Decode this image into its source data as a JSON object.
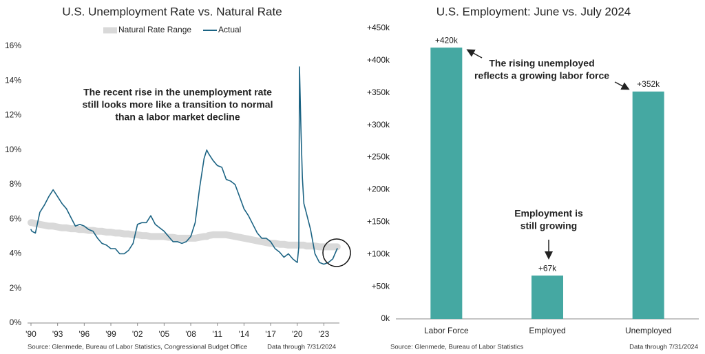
{
  "chart_data": [
    {
      "type": "line",
      "title": "U.S. Unemployment Rate vs. Natural Rate",
      "x": [
        1990.0,
        1990.1,
        1990.5,
        1991.0,
        1991.5,
        1992.0,
        1992.5,
        1993.0,
        1993.5,
        1994.0,
        1994.5,
        1995.0,
        1995.5,
        1996.0,
        1996.5,
        1997.0,
        1997.5,
        1998.0,
        1998.5,
        1999.0,
        1999.5,
        2000.0,
        2000.5,
        2001.0,
        2001.5,
        2002.0,
        2002.5,
        2003.0,
        2003.5,
        2004.0,
        2004.5,
        2005.0,
        2005.5,
        2006.0,
        2006.5,
        2007.0,
        2007.5,
        2008.0,
        2008.5,
        2009.0,
        2009.5,
        2009.8,
        2010.0,
        2010.5,
        2011.0,
        2011.5,
        2012.0,
        2012.5,
        2013.0,
        2013.5,
        2014.0,
        2014.5,
        2015.0,
        2015.5,
        2016.0,
        2016.5,
        2017.0,
        2017.5,
        2018.0,
        2018.5,
        2019.0,
        2019.5,
        2020.0,
        2020.17,
        2020.25,
        2020.42,
        2020.58,
        2020.75,
        2021.0,
        2021.5,
        2022.0,
        2022.5,
        2023.0,
        2023.5,
        2024.0,
        2024.5
      ],
      "series": [
        {
          "name": "Natural Rate Range",
          "color": "#d9d9d9",
          "values": [
            5.8,
            5.8,
            5.75,
            5.7,
            5.65,
            5.6,
            5.6,
            5.55,
            5.5,
            5.5,
            5.45,
            5.45,
            5.4,
            5.4,
            5.35,
            5.35,
            5.3,
            5.3,
            5.25,
            5.25,
            5.2,
            5.2,
            5.15,
            5.15,
            5.1,
            5.1,
            5.05,
            5.05,
            5.0,
            5.0,
            5.0,
            5.0,
            4.95,
            4.95,
            4.9,
            4.9,
            4.9,
            4.9,
            4.9,
            4.95,
            5.0,
            5.0,
            5.05,
            5.1,
            5.1,
            5.1,
            5.1,
            5.05,
            5.0,
            4.95,
            4.9,
            4.85,
            4.8,
            4.75,
            4.7,
            4.65,
            4.6,
            4.6,
            4.55,
            4.55,
            4.5,
            4.5,
            4.5,
            4.5,
            4.5,
            4.5,
            4.5,
            4.5,
            4.45,
            4.45,
            4.45,
            4.4,
            4.4,
            4.4,
            4.4,
            4.4
          ]
        },
        {
          "name": "Actual",
          "color": "#1b6383",
          "values": [
            5.4,
            5.3,
            5.2,
            6.4,
            6.8,
            7.3,
            7.7,
            7.3,
            6.9,
            6.6,
            6.1,
            5.6,
            5.7,
            5.6,
            5.4,
            5.3,
            4.9,
            4.6,
            4.5,
            4.3,
            4.3,
            4.0,
            4.0,
            4.2,
            4.6,
            5.7,
            5.8,
            5.8,
            6.2,
            5.7,
            5.5,
            5.3,
            5.0,
            4.7,
            4.7,
            4.6,
            4.7,
            5.0,
            5.8,
            7.8,
            9.5,
            10.0,
            9.8,
            9.4,
            9.1,
            9.0,
            8.3,
            8.2,
            8.0,
            7.3,
            6.6,
            6.2,
            5.7,
            5.2,
            4.9,
            4.9,
            4.7,
            4.3,
            4.1,
            3.8,
            4.0,
            3.7,
            3.5,
            4.4,
            14.8,
            11.1,
            8.4,
            6.9,
            6.4,
            5.4,
            4.0,
            3.5,
            3.4,
            3.5,
            3.7,
            4.3
          ]
        }
      ],
      "xlim": [
        1990,
        2024.75
      ],
      "xticks": [
        {
          "value": 1990,
          "label": "'90"
        },
        {
          "value": 1993,
          "label": "'93"
        },
        {
          "value": 1996,
          "label": "'96"
        },
        {
          "value": 1999,
          "label": "'99"
        },
        {
          "value": 2002,
          "label": "'02"
        },
        {
          "value": 2005,
          "label": "'05"
        },
        {
          "value": 2008,
          "label": "'08"
        },
        {
          "value": 2011,
          "label": "'11"
        },
        {
          "value": 2014,
          "label": "'14"
        },
        {
          "value": 2017,
          "label": "'17"
        },
        {
          "value": 2020,
          "label": "'20"
        },
        {
          "value": 2023,
          "label": "'23"
        }
      ],
      "ylim": [
        0,
        16
      ],
      "yticks": [
        {
          "value": 0,
          "label": "0%"
        },
        {
          "value": 2,
          "label": "2%"
        },
        {
          "value": 4,
          "label": "4%"
        },
        {
          "value": 6,
          "label": "6%"
        },
        {
          "value": 8,
          "label": "8%"
        },
        {
          "value": 10,
          "label": "10%"
        },
        {
          "value": 12,
          "label": "12%"
        },
        {
          "value": 14,
          "label": "14%"
        },
        {
          "value": 16,
          "label": "16%"
        }
      ],
      "annotation": [
        "The recent rise in the unemployment rate",
        "still looks more like a transition to normal",
        "than a labor market decline"
      ],
      "source": "Source: Glenmede, Bureau of Labor Statistics, Congressional Budget Office",
      "note": "Data through 7/31/2024"
    },
    {
      "type": "bar",
      "title": "U.S. Employment: June vs. July 2024",
      "categories": [
        "Labor Force",
        "Employed",
        "Unemployed"
      ],
      "values": [
        420000,
        67000,
        352000
      ],
      "value_labels": [
        "+420k",
        "+67k",
        "+352k"
      ],
      "color": "#45a8a2",
      "ylim": [
        0,
        450000
      ],
      "yticks": [
        {
          "value": 0,
          "label": "0k"
        },
        {
          "value": 50000,
          "label": "+50k"
        },
        {
          "value": 100000,
          "label": "+100k"
        },
        {
          "value": 150000,
          "label": "+150k"
        },
        {
          "value": 200000,
          "label": "+200k"
        },
        {
          "value": 250000,
          "label": "+250k"
        },
        {
          "value": 300000,
          "label": "+300k"
        },
        {
          "value": 350000,
          "label": "+350k"
        },
        {
          "value": 400000,
          "label": "+400k"
        },
        {
          "value": 450000,
          "label": "+450k"
        }
      ],
      "annotations": [
        [
          "The rising unemployed",
          "reflects a growing labor force"
        ],
        [
          "Employment is",
          "still growing"
        ]
      ],
      "source": "Source: Glenmede, Bureau of Labor Statistics",
      "note": "Data through 7/31/2024"
    }
  ]
}
